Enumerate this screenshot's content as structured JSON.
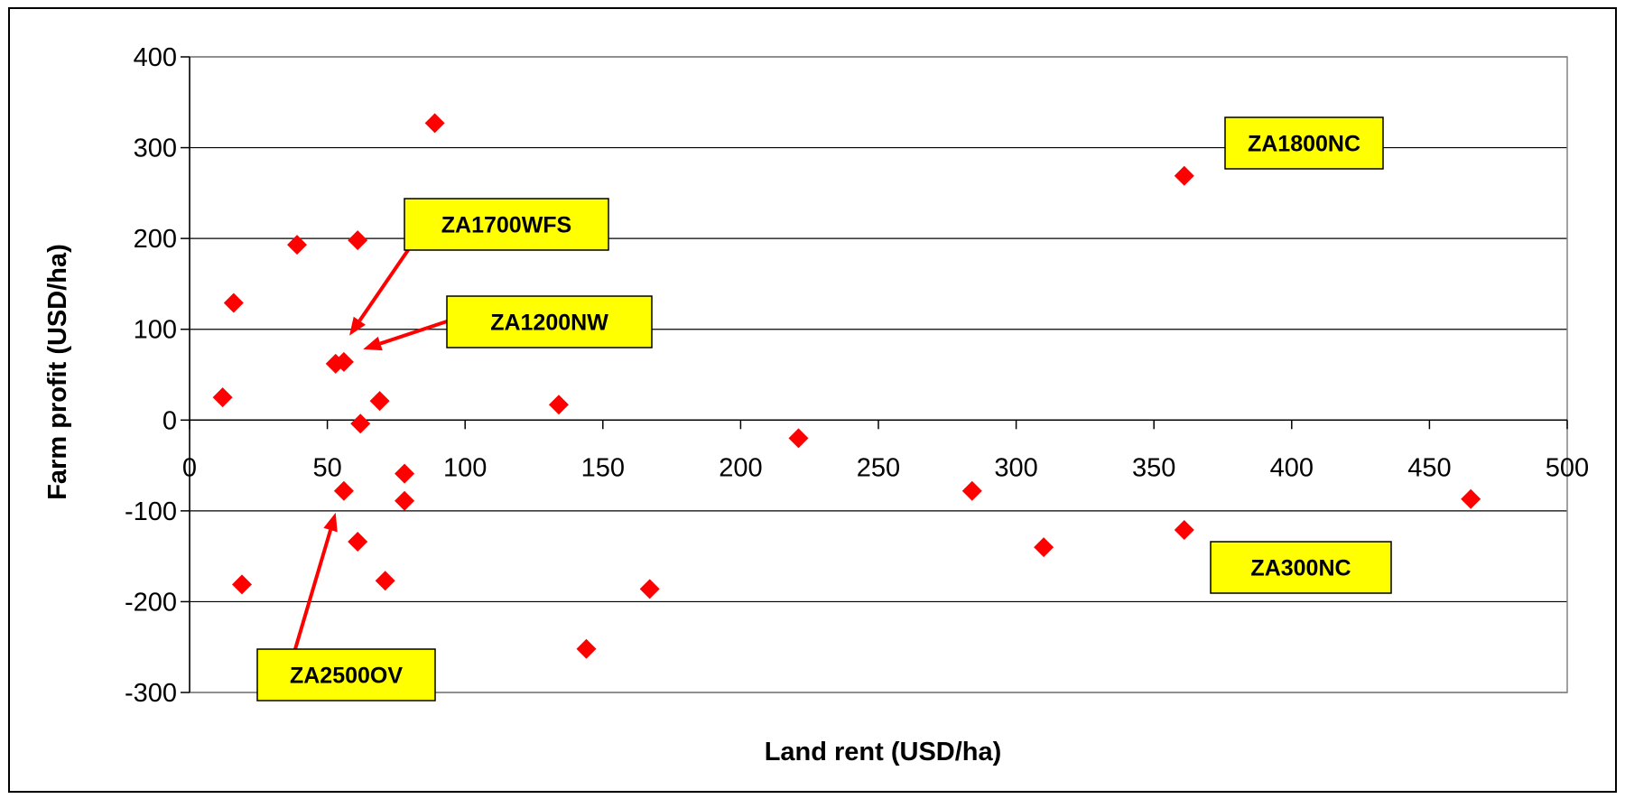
{
  "chart_data": {
    "type": "scatter",
    "title": "",
    "xlabel": "Land rent (USD/ha)",
    "ylabel": "Farm profit (USD/ha)",
    "xlim": [
      0,
      500
    ],
    "ylim": [
      -300,
      400
    ],
    "xticks": [
      0,
      50,
      100,
      150,
      200,
      250,
      300,
      350,
      400,
      450,
      500
    ],
    "yticks": [
      -300,
      -200,
      -100,
      0,
      100,
      200,
      300,
      400
    ],
    "grid": "horizontal",
    "legend": "none",
    "marker": "diamond",
    "color": "#ff0000",
    "points": [
      {
        "x": 12,
        "y": 25
      },
      {
        "x": 16,
        "y": 129
      },
      {
        "x": 19,
        "y": -181
      },
      {
        "x": 39,
        "y": 193
      },
      {
        "x": 53,
        "y": 62
      },
      {
        "x": 56,
        "y": 64
      },
      {
        "x": 56,
        "y": -78
      },
      {
        "x": 61,
        "y": 198
      },
      {
        "x": 61,
        "y": -134
      },
      {
        "x": 62,
        "y": -4
      },
      {
        "x": 69,
        "y": 21
      },
      {
        "x": 71,
        "y": -177
      },
      {
        "x": 78,
        "y": -59
      },
      {
        "x": 78,
        "y": -89
      },
      {
        "x": 89,
        "y": 327
      },
      {
        "x": 134,
        "y": 17
      },
      {
        "x": 144,
        "y": -252
      },
      {
        "x": 167,
        "y": -186
      },
      {
        "x": 221,
        "y": -20
      },
      {
        "x": 284,
        "y": -78
      },
      {
        "x": 310,
        "y": -140
      },
      {
        "x": 361,
        "y": 269
      },
      {
        "x": 361,
        "y": -121
      },
      {
        "x": 465,
        "y": -87
      }
    ],
    "annotations": [
      {
        "label": "ZA1800NC",
        "arrow": false
      },
      {
        "label": "ZA1700WFS",
        "arrow": true,
        "target": {
          "x": 58,
          "y": 93
        }
      },
      {
        "label": "ZA1200NW",
        "arrow": true,
        "target": {
          "x": 63,
          "y": 78
        }
      },
      {
        "label": "ZA300NC",
        "arrow": false
      },
      {
        "label": "ZA2500OV",
        "arrow": true,
        "target": {
          "x": 53,
          "y": -102
        }
      }
    ],
    "callout_fill": "#ffff00"
  }
}
